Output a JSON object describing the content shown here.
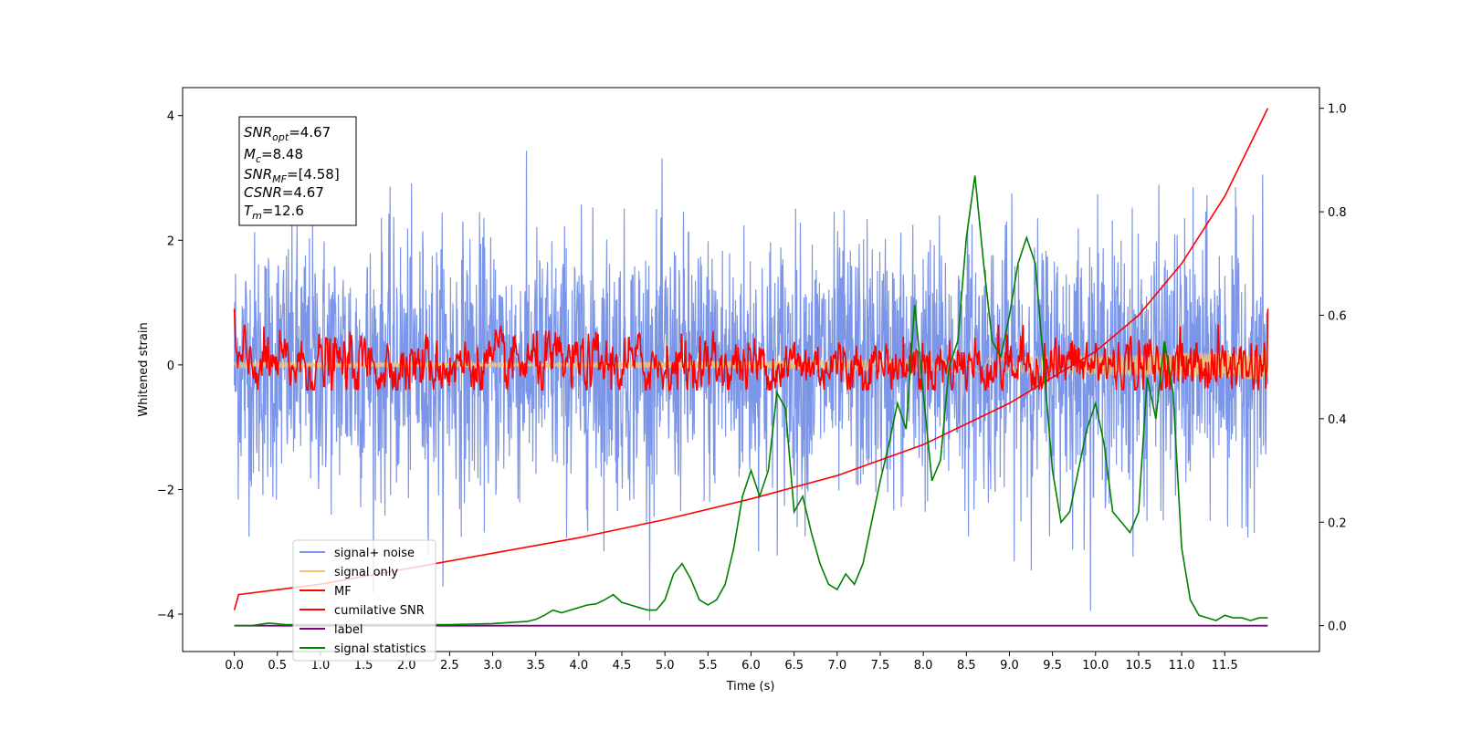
{
  "chart_data": {
    "type": "line",
    "xlabel": "Time (s)",
    "ylabel": "Whitened strain",
    "xlim": [
      -0.6,
      12.6
    ],
    "ylim": [
      -4.6,
      4.45
    ],
    "y2lim": [
      -0.05,
      1.04
    ],
    "xticks": [
      "0.0",
      "0.5",
      "1.0",
      "1.5",
      "2.0",
      "2.5",
      "3.0",
      "3.5",
      "4.0",
      "4.5",
      "5.0",
      "5.5",
      "6.0",
      "6.5",
      "7.0",
      "7.5",
      "8.0",
      "8.5",
      "9.0",
      "9.5",
      "10.0",
      "10.5",
      "11.0",
      "11.5"
    ],
    "yticks": [
      "−4",
      "−2",
      "0",
      "2",
      "4"
    ],
    "y2ticks": [
      "0.0",
      "0.2",
      "0.4",
      "0.6",
      "0.8",
      "1.0"
    ],
    "annotation": {
      "snr_opt": "=4.67",
      "mc": "=8.48",
      "snr_mf": "=[4.58]",
      "csnr": "=4.67",
      "tm": "=12.6"
    },
    "legend_position": "lower-left",
    "legend": [
      {
        "label": "signal+ noise",
        "color": "#7b96e8"
      },
      {
        "label": "signal only",
        "color": "#f5c36e"
      },
      {
        "label": "MF",
        "color": "#ff0000"
      },
      {
        "label": "cumilative SNR",
        "color": "#ff0000"
      },
      {
        "label": "label",
        "color": "#800080"
      },
      {
        "label": "signal statistics",
        "color": "#008000"
      }
    ],
    "series": [
      {
        "name": "signal+ noise",
        "axis": "left",
        "color": "#7b96e8",
        "style": "dense noise band",
        "y_range": [
          -4.1,
          4.05
        ]
      },
      {
        "name": "signal only",
        "axis": "left",
        "color": "#f5c36e",
        "style": "chirp, amplitude growing toward end",
        "x_range": [
          0.0,
          12.0
        ]
      },
      {
        "name": "MF",
        "axis": "left",
        "color": "#ff0000",
        "style": "oscillating around 0",
        "y_range": [
          -0.4,
          1.0
        ]
      },
      {
        "name": "cumilative SNR",
        "axis": "right",
        "color": "#ff0000",
        "x": [
          0.0,
          0.05,
          1.0,
          2.0,
          3.0,
          4.0,
          5.0,
          6.0,
          7.0,
          8.0,
          9.0,
          10.0,
          10.5,
          11.0,
          11.5,
          12.0
        ],
        "y": [
          0.03,
          0.06,
          0.08,
          0.11,
          0.14,
          0.17,
          0.205,
          0.245,
          0.29,
          0.35,
          0.43,
          0.53,
          0.6,
          0.7,
          0.83,
          1.0
        ]
      },
      {
        "name": "label",
        "axis": "right",
        "color": "#800080",
        "x": [
          0.0,
          12.0
        ],
        "y": [
          0.0,
          0.0
        ]
      },
      {
        "name": "signal statistics",
        "axis": "right",
        "color": "#008000",
        "x": [
          0.0,
          0.2,
          0.4,
          0.6,
          0.8,
          1.0,
          1.5,
          2.0,
          2.5,
          3.0,
          3.2,
          3.4,
          3.5,
          3.6,
          3.7,
          3.8,
          3.9,
          4.0,
          4.1,
          4.2,
          4.3,
          4.4,
          4.5,
          4.6,
          4.7,
          4.8,
          4.9,
          5.0,
          5.1,
          5.2,
          5.3,
          5.4,
          5.5,
          5.6,
          5.7,
          5.8,
          5.9,
          6.0,
          6.1,
          6.2,
          6.3,
          6.4,
          6.5,
          6.6,
          6.7,
          6.8,
          6.9,
          7.0,
          7.1,
          7.2,
          7.3,
          7.4,
          7.5,
          7.6,
          7.7,
          7.8,
          7.9,
          8.0,
          8.1,
          8.2,
          8.3,
          8.4,
          8.5,
          8.6,
          8.7,
          8.8,
          8.9,
          9.0,
          9.1,
          9.2,
          9.3,
          9.4,
          9.5,
          9.6,
          9.7,
          9.8,
          9.9,
          10.0,
          10.1,
          10.2,
          10.3,
          10.4,
          10.5,
          10.6,
          10.7,
          10.8,
          10.9,
          11.0,
          11.1,
          11.2,
          11.3,
          11.4,
          11.5,
          11.6,
          11.7,
          11.8,
          11.9,
          12.0
        ],
        "y": [
          0.0,
          0.0,
          0.005,
          0.002,
          0.002,
          0.002,
          0.002,
          0.002,
          0.002,
          0.004,
          0.006,
          0.008,
          0.012,
          0.02,
          0.03,
          0.025,
          0.03,
          0.035,
          0.04,
          0.042,
          0.05,
          0.06,
          0.045,
          0.04,
          0.035,
          0.03,
          0.03,
          0.05,
          0.1,
          0.12,
          0.09,
          0.05,
          0.04,
          0.05,
          0.08,
          0.15,
          0.25,
          0.3,
          0.25,
          0.3,
          0.45,
          0.42,
          0.22,
          0.25,
          0.18,
          0.12,
          0.08,
          0.07,
          0.1,
          0.08,
          0.12,
          0.2,
          0.28,
          0.35,
          0.43,
          0.38,
          0.62,
          0.45,
          0.28,
          0.32,
          0.5,
          0.55,
          0.75,
          0.87,
          0.7,
          0.55,
          0.52,
          0.6,
          0.7,
          0.75,
          0.7,
          0.5,
          0.3,
          0.2,
          0.22,
          0.3,
          0.38,
          0.43,
          0.35,
          0.22,
          0.2,
          0.18,
          0.22,
          0.48,
          0.4,
          0.55,
          0.45,
          0.15,
          0.05,
          0.02,
          0.015,
          0.01,
          0.02,
          0.015,
          0.015,
          0.01,
          0.015,
          0.015
        ]
      }
    ]
  }
}
